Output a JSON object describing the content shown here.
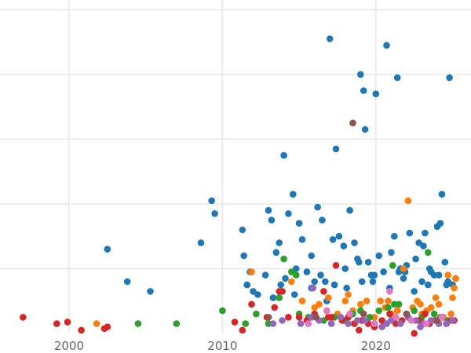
{
  "chart_data": {
    "type": "scatter",
    "title": "",
    "xlabel": "",
    "ylabel": "",
    "xlim": [
      1995.5,
      2026.2
    ],
    "ylim": [
      0,
      10.3
    ],
    "grid": true,
    "legend": "none",
    "x_ticks": [
      2000,
      2010,
      2020
    ],
    "x_tick_labels": [
      "2000",
      "2010",
      "2020"
    ],
    "y_gridlines": [
      2,
      4,
      6,
      8,
      10
    ],
    "series": [
      {
        "color": "#1f77b4",
        "x": [
          2002.5,
          2003.8,
          2005.3,
          2008.6,
          2009.3,
          2009.5,
          2011.3,
          2011.4,
          2011.6,
          2011.8,
          2012.3,
          2012.8,
          2013.0,
          2013.2,
          2013.5,
          2013.7,
          2013.8,
          2014.0,
          2014.1,
          2014.3,
          2014.6,
          2014.8,
          2015.0,
          2015.2,
          2015.5,
          2015.8,
          2016.0,
          2016.2,
          2016.5,
          2016.7,
          2017.0,
          2017.2,
          2017.4,
          2017.6,
          2017.9,
          2018.0,
          2018.3,
          2018.6,
          2018.8,
          2019.0,
          2019.2,
          2019.3,
          2019.5,
          2019.7,
          2019.8,
          2020.0,
          2020.2,
          2020.5,
          2020.7,
          2021.0,
          2021.2,
          2021.4,
          2021.6,
          2021.8,
          2022.0,
          2022.2,
          2022.5,
          2022.8,
          2023.0,
          2023.1,
          2023.2,
          2023.4,
          2023.5,
          2023.8,
          2024.0,
          2024.2,
          2024.3,
          2024.5,
          2024.7,
          2024.8,
          2025.0,
          2025.2,
          2015.8,
          2018.9,
          2012.0,
          2014.7,
          2016.8,
          2017.3,
          2019.9,
          2020.9,
          2021.9,
          2022.6,
          2023.6,
          2024.1,
          2019.1,
          2018.1,
          2021.5,
          2024.6,
          2013.3,
          2016.4
        ],
        "y": [
          2.6,
          1.6,
          1.3,
          2.8,
          4.1,
          3.7,
          3.2,
          2.4,
          1.5,
          1.9,
          1.2,
          1.8,
          3.8,
          3.5,
          2.5,
          2.8,
          1.5,
          5.5,
          1.7,
          3.7,
          4.3,
          2.0,
          3.4,
          2.9,
          1.9,
          2.4,
          1.6,
          3.9,
          3.5,
          1.6,
          9.1,
          2.9,
          5.7,
          3.0,
          2.7,
          2.0,
          3.8,
          2.8,
          2.3,
          8.0,
          7.5,
          6.3,
          2.2,
          1.8,
          1.6,
          7.4,
          2.4,
          1.9,
          8.9,
          2.5,
          3.0,
          7.9,
          2.0,
          1.7,
          2.1,
          3.1,
          1.3,
          2.8,
          1.6,
          2.7,
          3.1,
          1.5,
          2.0,
          1.8,
          3.3,
          3.4,
          4.3,
          2.2,
          1.6,
          7.9,
          1.5,
          1.7,
          1.4,
          2.2,
          1.3,
          1.2,
          1.0,
          1.5,
          1.8,
          1.4,
          1.9,
          2.3,
          1.9,
          1.8,
          1.6,
          1.4,
          1.9,
          1.5,
          1.1,
          1.8
        ]
      },
      {
        "color": "#ff7f0e",
        "x": [
          2001.8,
          2011.9,
          2014.5,
          2015.2,
          2016.0,
          2016.3,
          2016.9,
          2017.5,
          2018.0,
          2018.5,
          2019.0,
          2019.4,
          2019.9,
          2020.3,
          2020.6,
          2021.0,
          2021.4,
          2021.8,
          2022.1,
          2022.4,
          2022.7,
          2023.0,
          2023.3,
          2023.6,
          2023.9,
          2024.1,
          2024.4,
          2024.7,
          2025.0,
          2025.1,
          2025.2,
          2018.2,
          2020.8,
          2022.9,
          2024.9,
          2017.2
        ],
        "y": [
          0.3,
          1.9,
          1.6,
          1.0,
          0.8,
          0.9,
          1.1,
          0.6,
          1.0,
          0.7,
          0.9,
          1.0,
          0.5,
          1.0,
          0.8,
          0.6,
          0.7,
          2.0,
          4.1,
          0.8,
          1.0,
          0.6,
          0.7,
          0.8,
          1.1,
          0.9,
          0.5,
          1.8,
          1.1,
          1.4,
          1.7,
          1.2,
          1.0,
          0.9,
          0.6,
          0.5
        ]
      },
      {
        "color": "#2ca02c",
        "x": [
          2004.5,
          2007.0,
          2010.0,
          2011.5,
          2012.2,
          2013.0,
          2013.7,
          2014.0,
          2014.5,
          2015.0,
          2015.6,
          2016.0,
          2016.6,
          2017.3,
          2017.9,
          2018.5,
          2019.0,
          2019.6,
          2020.2,
          2020.8,
          2021.1,
          2021.5,
          2022.0,
          2022.5,
          2023.0,
          2023.4,
          2023.8,
          2024.2,
          2024.7,
          2025.1,
          2014.8,
          2021.2
        ],
        "y": [
          0.3,
          0.3,
          0.7,
          0.3,
          0.6,
          0.3,
          1.1,
          2.3,
          1.9,
          0.6,
          0.5,
          0.6,
          0.4,
          0.5,
          0.4,
          0.6,
          0.7,
          0.5,
          0.7,
          0.8,
          2.1,
          0.9,
          0.6,
          0.7,
          0.5,
          2.5,
          0.6,
          0.5,
          0.4,
          0.4,
          1.8,
          0.9
        ]
      },
      {
        "color": "#d62728",
        "x": [
          1997.0,
          1999.2,
          1999.9,
          2000.8,
          2002.3,
          2002.5,
          2010.8,
          2011.3,
          2011.9,
          2012.9,
          2013.4,
          2013.9,
          2014.3,
          2015.0,
          2015.5,
          2016.0,
          2016.6,
          2017.1,
          2017.4,
          2017.8,
          2018.2,
          2018.6,
          2019.1,
          2019.5,
          2019.9,
          2020.4,
          2020.9,
          2021.3,
          2021.7,
          2022.1,
          2022.5,
          2022.8,
          2023.2,
          2023.5,
          2023.9,
          2024.3,
          2024.6,
          2024.9,
          2025.1,
          2013.7,
          2016.9,
          2018.9
        ],
        "y": [
          0.5,
          0.3,
          0.35,
          0.1,
          0.15,
          0.2,
          0.35,
          0.1,
          0.9,
          0.5,
          0.8,
          1.3,
          0.5,
          0.5,
          0.4,
          0.6,
          1.3,
          0.5,
          2.1,
          0.4,
          0.5,
          0.3,
          0.4,
          0.3,
          0.2,
          0.4,
          0.6,
          0.3,
          0.4,
          0.5,
          0.0,
          0.4,
          0.6,
          0.3,
          0.4,
          0.5,
          0.3,
          0.4,
          0.4,
          1.3,
          0.5,
          0.1
        ]
      },
      {
        "color": "#9467bd",
        "x": [
          2013.3,
          2013.9,
          2015.1,
          2015.8,
          2016.3,
          2017.1,
          2017.7,
          2018.2,
          2018.8,
          2019.3,
          2019.9,
          2020.4,
          2021.0,
          2021.6,
          2022.1,
          2022.6,
          2023.1,
          2023.6,
          2024.1,
          2024.6,
          2025.0,
          2015.9,
          2020.7,
          2022.9
        ],
        "y": [
          0.3,
          0.4,
          0.3,
          0.5,
          0.4,
          0.3,
          0.5,
          0.3,
          0.4,
          0.4,
          0.3,
          0.2,
          0.4,
          0.3,
          0.5,
          0.4,
          0.3,
          0.4,
          0.3,
          0.3,
          0.4,
          1.4,
          0.3,
          0.2
        ]
      },
      {
        "color": "#8c564b",
        "x": [
          2018.5,
          2013.0,
          2016.1,
          2019.2,
          2022.0,
          2024.0
        ],
        "y": [
          6.5,
          0.5,
          0.5,
          0.6,
          0.6,
          0.4
        ]
      },
      {
        "color": "#e377c2",
        "x": [
          2015.6,
          2019.9,
          2020.9,
          2021.3,
          2022.3,
          2023.3,
          2024.3,
          2016.8,
          2018.3
        ],
        "y": [
          0.3,
          0.3,
          1.3,
          0.5,
          0.4,
          0.3,
          0.5,
          0.7,
          0.6
        ]
      }
    ]
  }
}
